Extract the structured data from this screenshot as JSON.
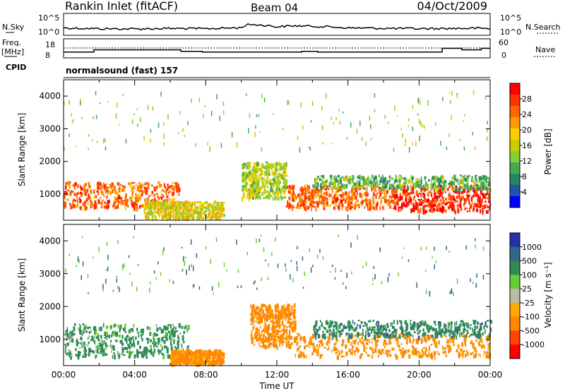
{
  "header": {
    "station": "Rankin Inlet (fitACF)",
    "beam": "Beam 04",
    "date": "04/Oct/2009"
  },
  "aux": {
    "nsky_label": "N.Sky",
    "nsky_ticks": [
      "10^5",
      "10^0"
    ],
    "nsearch_label": "N.Search",
    "freq_label": "Freq.",
    "freq_unit": "[MHz]",
    "freq_ticks": [
      "18",
      "8"
    ],
    "nave_label": "Nave",
    "nave_ticks": [
      "60",
      "0"
    ],
    "cpid_label": "CPID",
    "cpid_value": "normalsound (fast) 157"
  },
  "colorbars": {
    "power": {
      "label": "Power [dB]",
      "ticks": [
        "28",
        "24",
        "20",
        "16",
        "12",
        "8",
        "4"
      ],
      "colors": [
        "#ff0000",
        "#ff3300",
        "#ff6600",
        "#ff9900",
        "#ffcc00",
        "#cccc00",
        "#88cc33",
        "#44aa55",
        "#228866",
        "#2255aa",
        "#0000ff"
      ]
    },
    "velocity": {
      "label": "Velocity [m s⁻¹]",
      "ticks": [
        "1000",
        "500",
        "100",
        "25",
        "-25",
        "-100",
        "-500",
        "-1000"
      ],
      "colors": [
        "#2233aa",
        "#336688",
        "#2e8b57",
        "#66cc33",
        "#bbbbaa",
        "#ffaa00",
        "#ff8800",
        "#ff4400",
        "#ff0000"
      ]
    }
  },
  "chart_data": [
    {
      "type": "line",
      "title": "N.Sky / N.Search",
      "x": [
        "00:00",
        "02:00",
        "04:00",
        "06:00",
        "08:00",
        "10:00",
        "10:30",
        "12:00",
        "13:00",
        "16:00",
        "20:00",
        "23:00",
        "24:00"
      ],
      "series": [
        {
          "name": "N.Sky",
          "values": [
            30,
            18,
            16,
            22,
            18,
            35,
            300,
            60,
            120,
            30,
            18,
            25,
            20
          ]
        },
        {
          "name": "N.Search",
          "values": [
            10,
            10,
            10,
            10,
            10,
            10,
            10,
            10,
            10,
            10,
            10,
            10,
            10
          ]
        }
      ],
      "ylim": [
        1,
        100000
      ],
      "yscale": "log"
    },
    {
      "type": "line",
      "title": "Freq. / Nave",
      "x": [
        0,
        1.7,
        2.3,
        6.6,
        7.8,
        8.7,
        9.1,
        12.6,
        13.4,
        14.3,
        15.1,
        21.3,
        22.4,
        23.5,
        24
      ],
      "series": [
        {
          "name": "Freq.",
          "values": [
            10.5,
            12,
            12,
            11,
            10.5,
            10.5,
            10.5,
            10.5,
            11,
            10.5,
            10.5,
            13,
            12,
            13,
            13
          ]
        },
        {
          "name": "Nave",
          "values": [
            25,
            25,
            25,
            25,
            25,
            25,
            25,
            25,
            25,
            25,
            25,
            25,
            25,
            25,
            25
          ]
        }
      ],
      "ylim": [
        8,
        18
      ]
    },
    {
      "type": "heatmap",
      "title": "Power",
      "xlabel": "",
      "ylabel": "Slant Range [km]",
      "xticks": [
        "00:00",
        "04:00",
        "08:00",
        "12:00",
        "16:00",
        "20:00",
        "00:00"
      ],
      "yticks": [
        1000,
        2000,
        3000,
        4000
      ],
      "xlim": [
        0,
        24
      ],
      "ylim": [
        200,
        4500
      ],
      "bands": [
        {
          "t0": 0.0,
          "t1": 6.5,
          "r0": 600,
          "r1": 1400,
          "value": 24
        },
        {
          "t0": 4.5,
          "t1": 9.0,
          "r0": 300,
          "r1": 800,
          "value": 16
        },
        {
          "t0": 10.0,
          "t1": 12.5,
          "r0": 900,
          "r1": 2000,
          "value": 14
        },
        {
          "t0": 12.5,
          "t1": 18.5,
          "r0": 600,
          "r1": 1300,
          "value": 24
        },
        {
          "t0": 18.5,
          "t1": 24.0,
          "r0": 500,
          "r1": 1300,
          "value": 28
        },
        {
          "t0": 14.0,
          "t1": 24.0,
          "r0": 1200,
          "r1": 1600,
          "value": 10
        }
      ]
    },
    {
      "type": "heatmap",
      "title": "Velocity",
      "xlabel": "Time UT",
      "ylabel": "Slant Range [km]",
      "xticks": [
        "00:00",
        "04:00",
        "08:00",
        "12:00",
        "16:00",
        "20:00",
        "00:00"
      ],
      "yticks": [
        1000,
        2000,
        3000,
        4000
      ],
      "xlim": [
        0,
        24
      ],
      "ylim": [
        200,
        4500
      ],
      "bands": [
        {
          "t0": 0.0,
          "t1": 7.0,
          "r0": 500,
          "r1": 1500,
          "value": 150
        },
        {
          "t0": 6.0,
          "t1": 9.0,
          "r0": 300,
          "r1": 700,
          "value": -200
        },
        {
          "t0": 10.5,
          "t1": 13.0,
          "r0": 800,
          "r1": 2100,
          "value": -200
        },
        {
          "t0": 13.0,
          "t1": 24.0,
          "r0": 500,
          "r1": 1200,
          "value": -200
        },
        {
          "t0": 14.0,
          "t1": 24.0,
          "r0": 1100,
          "r1": 1600,
          "value": 200
        }
      ]
    }
  ]
}
